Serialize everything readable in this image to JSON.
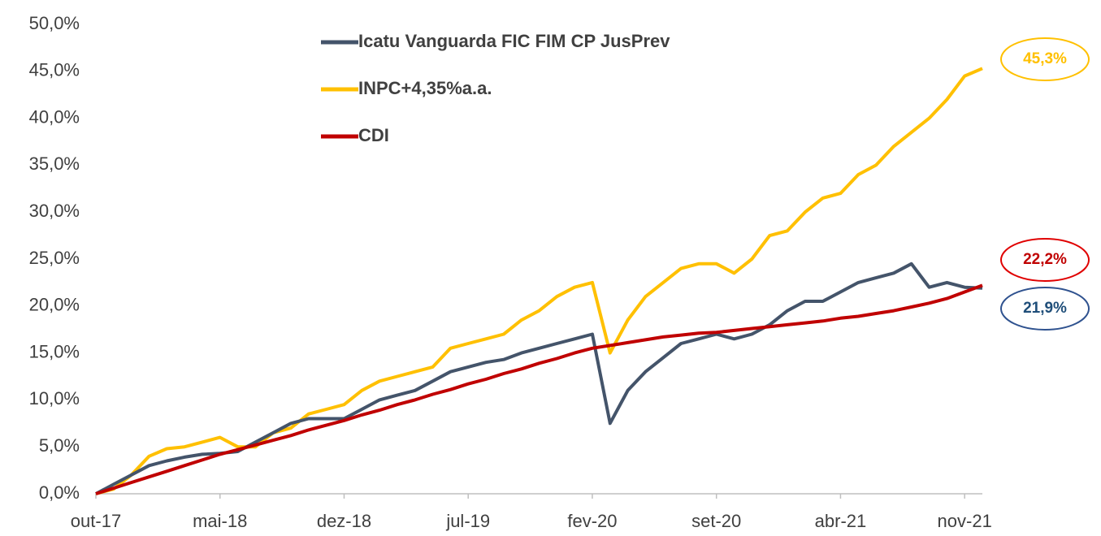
{
  "chart_data": {
    "type": "line",
    "categories": [
      "out-17",
      null,
      null,
      null,
      null,
      null,
      null,
      "mai-18",
      null,
      null,
      null,
      null,
      null,
      null,
      "dez-18",
      null,
      null,
      null,
      null,
      null,
      null,
      "jul-19",
      null,
      null,
      null,
      null,
      null,
      null,
      "fev-20",
      null,
      null,
      null,
      null,
      null,
      null,
      "set-20",
      null,
      null,
      null,
      null,
      null,
      null,
      "abr-21",
      null,
      null,
      null,
      null,
      null,
      null,
      "nov-21",
      null
    ],
    "series": [
      {
        "name": "Icatu Vanguarda FIC FIM CP JusPrev",
        "color": "#44546a",
        "values": [
          0,
          1,
          2,
          3,
          3.5,
          3.9,
          4.2,
          4.3,
          4.5,
          5.5,
          6.5,
          7.5,
          8,
          8,
          8,
          9,
          10,
          10.5,
          11,
          12,
          13,
          13.5,
          14,
          14.3,
          15,
          15.5,
          16,
          16.5,
          17,
          7.5,
          11,
          13,
          14.5,
          16,
          16.5,
          17,
          16.5,
          17,
          18,
          19.5,
          20.5,
          20.5,
          21.5,
          22.5,
          23,
          23.5,
          24.5,
          22,
          22.5,
          22,
          21.9
        ],
        "value_labels": [
          null,
          null,
          null,
          null,
          null,
          null,
          null,
          null,
          null,
          null,
          null,
          null,
          null,
          null,
          null,
          null,
          null,
          null,
          null,
          null,
          null,
          null,
          null,
          null,
          null,
          null,
          null,
          null,
          null,
          null,
          null,
          null,
          null,
          null,
          null,
          null,
          null,
          null,
          null,
          null,
          null,
          null,
          null,
          null,
          null,
          null,
          null,
          null,
          null,
          null,
          "21,9%"
        ],
        "label_color": "#1f4e79"
      },
      {
        "name": "INPC+4,35%a.a.",
        "color": "#ffc000",
        "values": [
          0,
          0.5,
          2,
          4,
          4.8,
          5,
          5.5,
          6,
          5,
          5,
          6.5,
          7,
          8.5,
          9,
          9.5,
          11,
          12,
          12.5,
          13,
          13.5,
          15.5,
          16,
          16.5,
          17,
          18.5,
          19.5,
          21,
          22,
          22.5,
          15,
          18.5,
          21,
          22.5,
          24,
          24.5,
          24.5,
          23.5,
          25,
          27.5,
          28,
          30,
          31.5,
          32,
          34,
          35,
          37,
          38.5,
          40,
          42,
          44.5,
          45.3
        ],
        "value_labels": [
          null,
          null,
          null,
          null,
          null,
          null,
          null,
          null,
          null,
          null,
          null,
          null,
          null,
          null,
          null,
          null,
          null,
          null,
          null,
          null,
          null,
          null,
          null,
          null,
          null,
          null,
          null,
          null,
          null,
          null,
          null,
          null,
          null,
          null,
          null,
          null,
          null,
          null,
          null,
          null,
          null,
          null,
          null,
          null,
          null,
          null,
          null,
          null,
          null,
          null,
          "45,3%"
        ],
        "label_color": "#ffc000"
      },
      {
        "name": "CDI",
        "color": "#c00000",
        "values": [
          0,
          0.6,
          1.2,
          1.8,
          2.4,
          3.0,
          3.6,
          4.2,
          4.7,
          5.2,
          5.7,
          6.2,
          6.8,
          7.3,
          7.8,
          8.4,
          8.9,
          9.5,
          10.0,
          10.6,
          11.1,
          11.7,
          12.2,
          12.8,
          13.3,
          13.9,
          14.4,
          15.0,
          15.5,
          15.8,
          16.1,
          16.4,
          16.7,
          16.9,
          17.1,
          17.2,
          17.4,
          17.6,
          17.8,
          18.0,
          18.2,
          18.4,
          18.7,
          18.9,
          19.2,
          19.5,
          19.9,
          20.3,
          20.8,
          21.5,
          22.2
        ],
        "value_labels": [
          null,
          null,
          null,
          null,
          null,
          null,
          null,
          null,
          null,
          null,
          null,
          null,
          null,
          null,
          null,
          null,
          null,
          null,
          null,
          null,
          null,
          null,
          null,
          null,
          null,
          null,
          null,
          null,
          null,
          null,
          null,
          null,
          null,
          null,
          null,
          null,
          null,
          null,
          null,
          null,
          null,
          null,
          null,
          null,
          null,
          null,
          null,
          null,
          null,
          null,
          "22,2%"
        ],
        "label_color": "#c00000"
      }
    ],
    "ylim": [
      0,
      50
    ],
    "yticks": [
      {
        "value": 0,
        "label": "0,0%"
      },
      {
        "value": 5,
        "label": "5,0%"
      },
      {
        "value": 10,
        "label": "10,0%"
      },
      {
        "value": 15,
        "label": "15,0%"
      },
      {
        "value": 20,
        "label": "20,0%"
      },
      {
        "value": 25,
        "label": "25,0%"
      },
      {
        "value": 30,
        "label": "30,0%"
      },
      {
        "value": 35,
        "label": "35,0%"
      },
      {
        "value": 40,
        "label": "40,0%"
      },
      {
        "value": 45,
        "label": "45,0%"
      },
      {
        "value": 50,
        "label": "50,0%"
      }
    ],
    "grid": false,
    "legend": "top-left"
  }
}
